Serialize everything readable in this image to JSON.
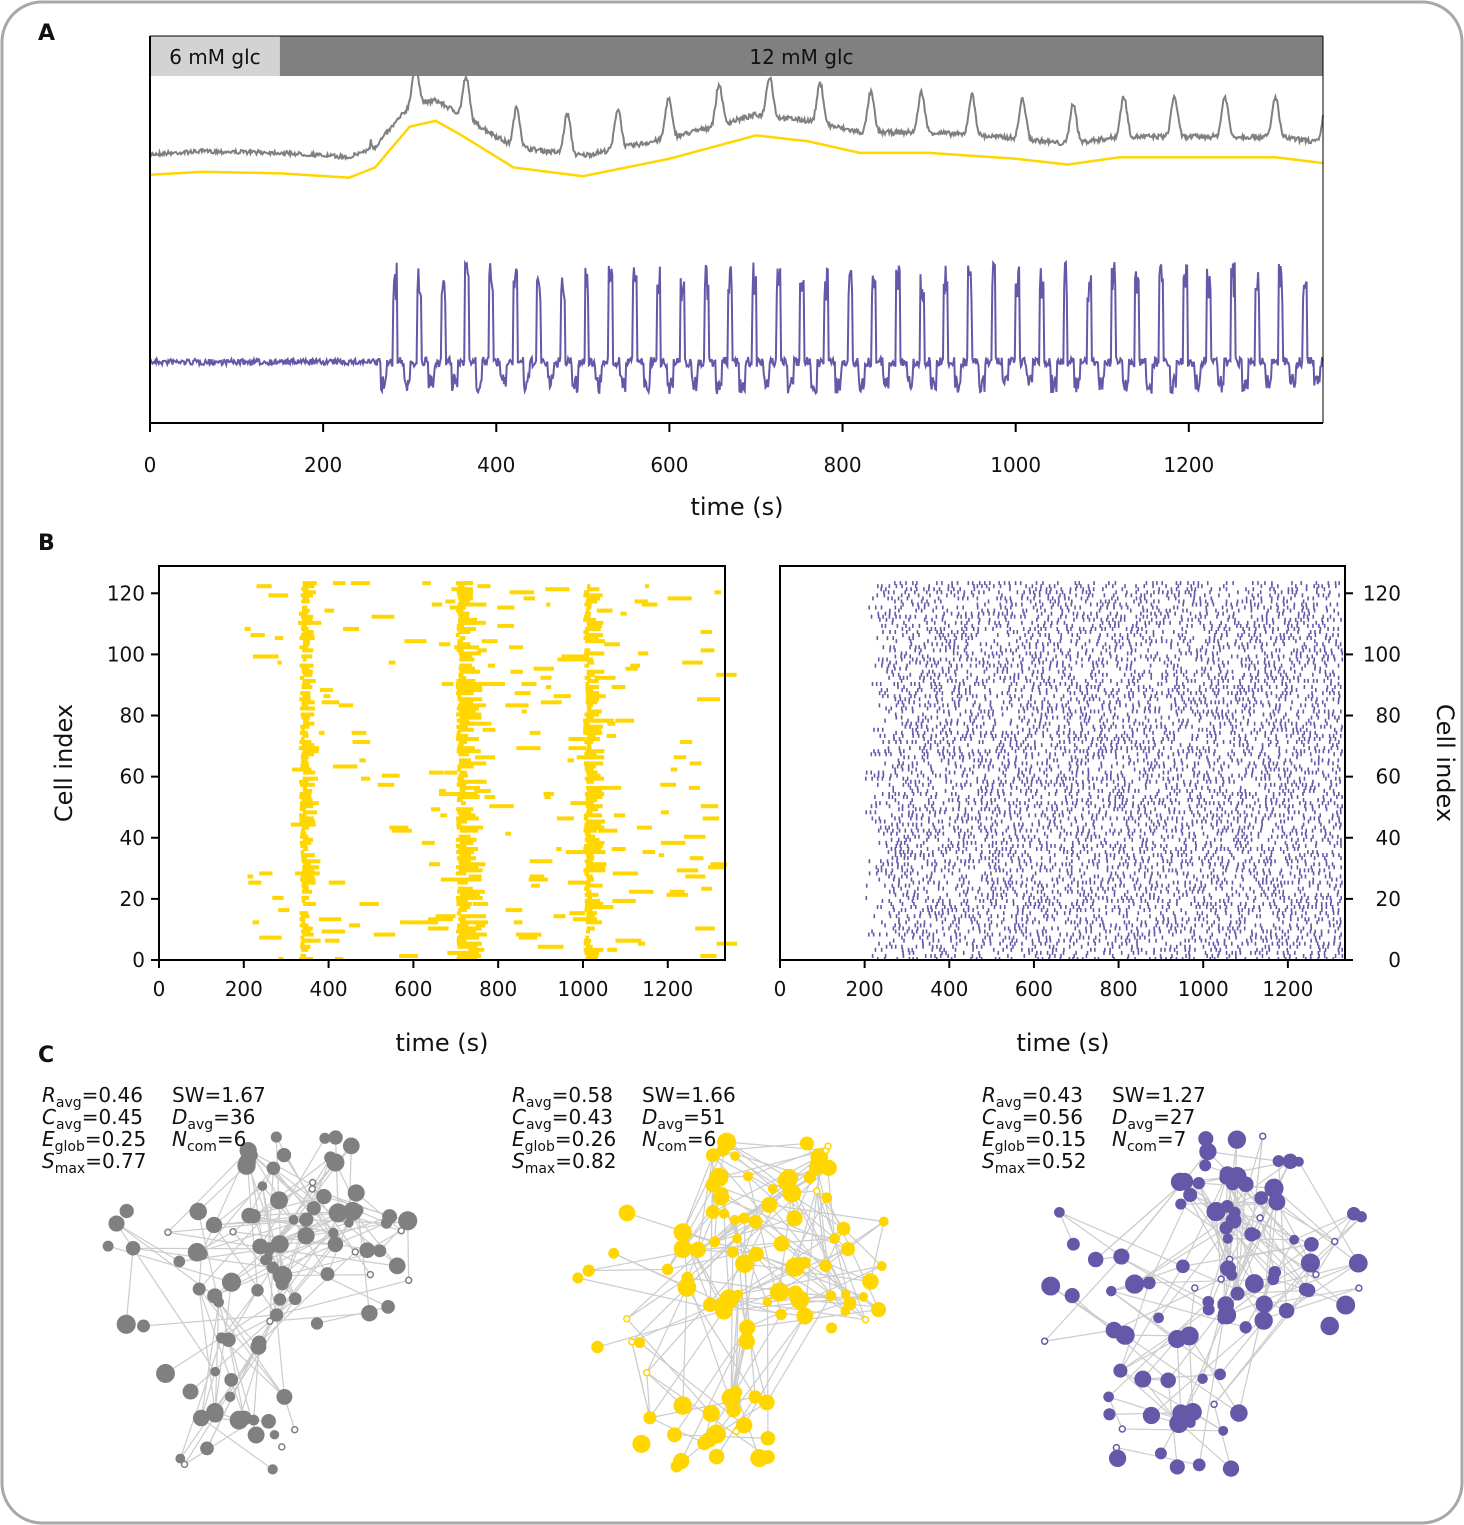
{
  "panels": {
    "a": "A",
    "b": "B",
    "c": "C"
  },
  "colors": {
    "gray": "#808080",
    "yellow": "#ffd600",
    "purple": "#6458a8",
    "edge": "#cccccc",
    "light_bar": "#d3d3d3",
    "dark_bar": "#808080"
  },
  "chart_data": [
    {
      "type": "line",
      "id": "A",
      "xlabel": "time (s)",
      "xlim": [
        0,
        1355
      ],
      "xticks": [
        0,
        200,
        400,
        600,
        800,
        1000,
        1200
      ],
      "stimulus": [
        {
          "label": "6 mM glc",
          "from": 0,
          "to": 150
        },
        {
          "label": "12 mM glc",
          "from": 150,
          "to": 1355
        }
      ],
      "series": [
        {
          "name": "raw signal (gray)",
          "color": "#808080",
          "note": "baseline until ~250 s, burst ~330 s, then fast oscillations with slow wave peaking ~700 s"
        },
        {
          "name": "slow component (yellow)",
          "color": "#ffd600",
          "points": [
            [
              0,
              0.45
            ],
            [
              60,
              0.43
            ],
            [
              150,
              0.44
            ],
            [
              230,
              0.47
            ],
            [
              260,
              0.4
            ],
            [
              300,
              0.12
            ],
            [
              330,
              0.08
            ],
            [
              360,
              0.18
            ],
            [
              420,
              0.4
            ],
            [
              500,
              0.46
            ],
            [
              600,
              0.34
            ],
            [
              700,
              0.18
            ],
            [
              760,
              0.22
            ],
            [
              820,
              0.3
            ],
            [
              900,
              0.3
            ],
            [
              1000,
              0.34
            ],
            [
              1060,
              0.38
            ],
            [
              1120,
              0.33
            ],
            [
              1200,
              0.33
            ],
            [
              1300,
              0.33
            ],
            [
              1355,
              0.37
            ]
          ]
        },
        {
          "name": "fast component (purple)",
          "color": "#6458a8",
          "note": "flat until ~260 s, then spiking oscillations"
        }
      ]
    },
    {
      "type": "raster",
      "id": "B-left",
      "color": "#ffd600",
      "xlabel": "time (s)",
      "ylabel": "Cell index",
      "xlim": [
        0,
        1335
      ],
      "ylim": [
        0,
        125
      ],
      "xticks": [
        0,
        200,
        400,
        600,
        800,
        1000,
        1200
      ],
      "yticks": [
        0,
        20,
        40,
        60,
        80,
        100,
        120
      ],
      "activity_bands": [
        [
          330,
          360
        ],
        [
          700,
          760
        ],
        [
          1000,
          1040
        ]
      ]
    },
    {
      "type": "raster",
      "id": "B-right",
      "color": "#6458a8",
      "xlabel": "time (s)",
      "ylabel": "Cell index",
      "xlim": [
        0,
        1335
      ],
      "ylim": [
        0,
        125
      ],
      "xticks": [
        0,
        200,
        400,
        600,
        800,
        1000,
        1200
      ],
      "yticks": [
        0,
        20,
        40,
        60,
        80,
        100,
        120
      ],
      "activity_onset": 200
    }
  ],
  "networks": [
    {
      "color": "#808080",
      "stats": {
        "R": "0.46",
        "C": "0.45",
        "E": "0.25",
        "S": "0.77",
        "SW": "1.67",
        "D": "36",
        "N": "6"
      }
    },
    {
      "color": "#ffd600",
      "stats": {
        "R": "0.58",
        "C": "0.43",
        "E": "0.26",
        "S": "0.82",
        "SW": "1.66",
        "D": "51",
        "N": "6"
      }
    },
    {
      "color": "#6458a8",
      "stats": {
        "R": "0.43",
        "C": "0.56",
        "E": "0.15",
        "S": "0.52",
        "SW": "1.27",
        "D": "27",
        "N": "7"
      }
    }
  ],
  "stat_labels": {
    "R_sym": "R",
    "R_sub": "avg",
    "C_sym": "C",
    "C_sub": "avg",
    "E_sym": "E",
    "E_sub": "glob",
    "S_sym": "S",
    "S_sub": "max",
    "SW": "SW",
    "D_sym": "D",
    "D_sub": "avg",
    "N_sym": "N",
    "N_sub": "com"
  }
}
